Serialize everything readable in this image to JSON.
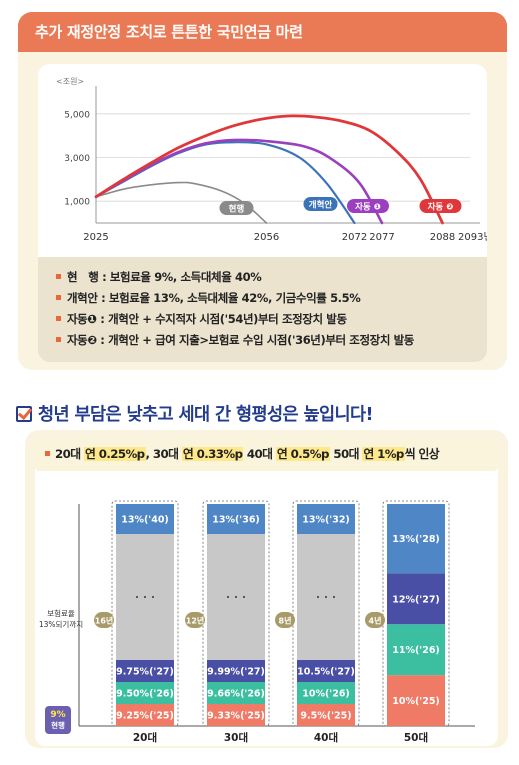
{
  "section1": {
    "title": "추가 재정안정 조치로 튼튼한 국민연금 마련",
    "chart_data": {
      "type": "line",
      "y_unit": "<조원>",
      "y_ticks": [
        1000,
        3000,
        5000
      ],
      "y_tick_labels": [
        "1,000",
        "3,000",
        "5,000"
      ],
      "x_tick_labels": [
        "2025",
        "2056",
        "2072",
        "2077",
        "2088",
        "2093년"
      ],
      "xlim": [
        2025,
        2093
      ],
      "ylim": [
        0,
        6000
      ],
      "series": [
        {
          "name": "현행",
          "color": "#8a8a8a",
          "x": [
            2025,
            2030,
            2035,
            2040,
            2043,
            2048,
            2052,
            2056
          ],
          "y": [
            1200,
            1550,
            1750,
            1850,
            1800,
            1450,
            900,
            0
          ]
        },
        {
          "name": "개혁안",
          "color": "#3b73b9",
          "x": [
            2025,
            2030,
            2035,
            2040,
            2045,
            2050,
            2056,
            2062,
            2067,
            2072
          ],
          "y": [
            1200,
            1900,
            2600,
            3200,
            3600,
            3700,
            3600,
            3000,
            1800,
            0
          ]
        },
        {
          "name": "자동 ❶",
          "color": "#9b3fbf",
          "x": [
            2025,
            2030,
            2035,
            2040,
            2045,
            2050,
            2056,
            2063,
            2068,
            2073,
            2077
          ],
          "y": [
            1200,
            1950,
            2650,
            3250,
            3650,
            3800,
            3750,
            3500,
            2900,
            1800,
            0
          ]
        },
        {
          "name": "자동 ❷",
          "color": "#e0383a",
          "x": [
            2025,
            2030,
            2035,
            2040,
            2045,
            2050,
            2055,
            2060,
            2065,
            2070,
            2075,
            2080,
            2084,
            2088
          ],
          "y": [
            1200,
            2000,
            2750,
            3450,
            4000,
            4450,
            4750,
            4900,
            4850,
            4650,
            4200,
            3200,
            2000,
            0
          ]
        }
      ]
    },
    "legend_rows": [
      {
        "label": "현　행 : 보험료율 9%, 소득대체율 40%"
      },
      {
        "label": "개혁안 : 보험료율 13%, 소득대체율 42%, 기금수익률 5.5%"
      },
      {
        "label": "자동❶ : 개혁안 + 수지적자 시점('54년)부터 조정장치 발동"
      },
      {
        "label": "자동❷ : 개혁안 + 급여 지출>보험료 수입 시점('36년)부터 조정장치 발동"
      }
    ]
  },
  "section2": {
    "title": "청년 부담은 낮추고 세대 간 형평성은 높입니다!",
    "subhead": {
      "p1": "20대 ",
      "h1": "연 0.25%p",
      "p2": ", 30대 ",
      "h2": "연 0.33%p",
      "p3": " 40대 ",
      "h3": "연 0.5%p",
      "p4": " 50대 ",
      "h4": "연 1%p",
      "p5": "씩 인상"
    },
    "colors": {
      "top": "#4f86c6",
      "gap": "#c8c8c8",
      "purple": "#4a4fa6",
      "teal": "#3bbfa0",
      "salmon": "#ef7b66",
      "badge": "#a89b68",
      "current_badge": "#6a5fb0"
    },
    "y_axis_label": "보험료율\n13%되기까지",
    "current_badge": "9%\n현행",
    "chart_data": {
      "type": "bar",
      "categories": [
        "20대",
        "30대",
        "40대",
        "50대"
      ],
      "years_to_13": [
        "16년",
        "12년",
        "8년",
        "4년"
      ],
      "stacks": [
        [
          {
            "label": "9.25%('25)",
            "kind": "salmon"
          },
          {
            "label": "9.50%('26)",
            "kind": "teal"
          },
          {
            "label": "9.75%('27)",
            "kind": "purple"
          },
          {
            "label": "· · ·",
            "kind": "gap"
          },
          {
            "label": "13%('40)",
            "kind": "top"
          }
        ],
        [
          {
            "label": "9.33%('25)",
            "kind": "salmon"
          },
          {
            "label": "9.66%('26)",
            "kind": "teal"
          },
          {
            "label": "9.99%('27)",
            "kind": "purple"
          },
          {
            "label": "· · ·",
            "kind": "gap"
          },
          {
            "label": "13%('36)",
            "kind": "top"
          }
        ],
        [
          {
            "label": "9.5%('25)",
            "kind": "salmon"
          },
          {
            "label": "10%('26)",
            "kind": "teal"
          },
          {
            "label": "10.5%('27)",
            "kind": "purple"
          },
          {
            "label": "· · ·",
            "kind": "gap"
          },
          {
            "label": "13%('32)",
            "kind": "top"
          }
        ],
        [
          {
            "label": "10%('25)",
            "kind": "salmon"
          },
          {
            "label": "11%('26)",
            "kind": "teal"
          },
          {
            "label": "12%('27)",
            "kind": "purple"
          },
          {
            "label": "13%('28)",
            "kind": "top"
          }
        ]
      ]
    }
  }
}
